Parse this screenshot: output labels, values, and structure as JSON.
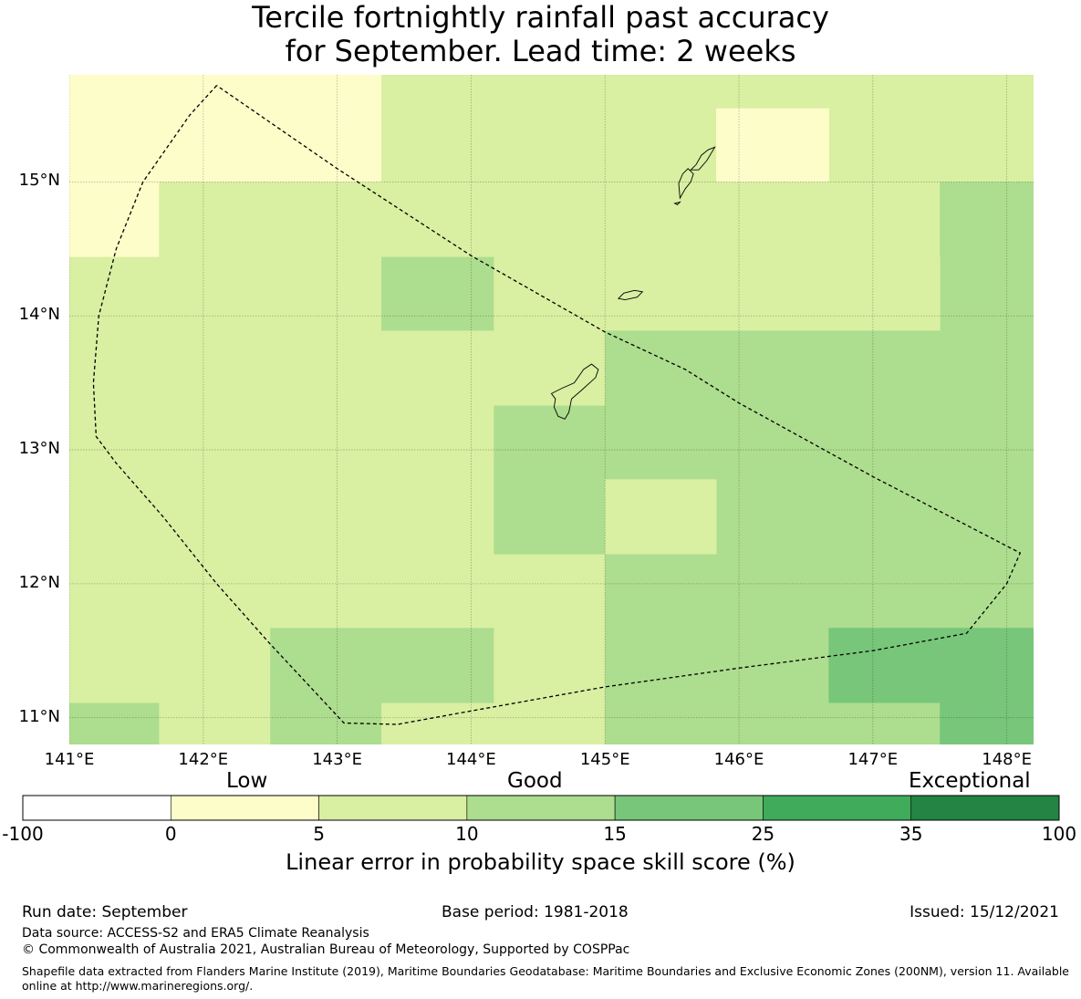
{
  "title": {
    "line1": "Tercile fortnightly rainfall past accuracy",
    "line2": "for September. Lead time: 2 weeks"
  },
  "map": {
    "lon_range": [
      141.0,
      148.2
    ],
    "lat_range": [
      10.8,
      15.8
    ],
    "lat_ticks": [
      {
        "value": 15,
        "label": "15°N"
      },
      {
        "value": 14,
        "label": "14°N"
      },
      {
        "value": 13,
        "label": "13°N"
      },
      {
        "value": 12,
        "label": "12°N"
      },
      {
        "value": 11,
        "label": "11°N"
      }
    ],
    "lon_ticks": [
      {
        "value": 141,
        "label": "141°E"
      },
      {
        "value": 142,
        "label": "142°E"
      },
      {
        "value": 143,
        "label": "143°E"
      },
      {
        "value": 144,
        "label": "144°E"
      },
      {
        "value": 145,
        "label": "145°E"
      },
      {
        "value": 146,
        "label": "146°E"
      },
      {
        "value": 147,
        "label": "147°E"
      },
      {
        "value": 148,
        "label": "148°E"
      }
    ],
    "grid_lines": true,
    "cells": [
      {
        "lon": [
          141.0,
          143.33
        ],
        "lat": [
          15.0,
          15.8
        ],
        "class": 1
      },
      {
        "lon": [
          143.33,
          148.2
        ],
        "lat": [
          15.0,
          15.8
        ],
        "class": 2
      },
      {
        "lon": [
          145.83,
          146.67
        ],
        "lat": [
          15.0,
          15.55
        ],
        "class": 1
      },
      {
        "lon": [
          141.0,
          141.67
        ],
        "lat": [
          14.44,
          15.0
        ],
        "class": 1
      },
      {
        "lon": [
          141.67,
          147.5
        ],
        "lat": [
          14.44,
          15.0
        ],
        "class": 2
      },
      {
        "lon": [
          147.5,
          148.2
        ],
        "lat": [
          13.89,
          15.0
        ],
        "class": 3
      },
      {
        "lon": [
          141.0,
          143.33
        ],
        "lat": [
          13.89,
          14.44
        ],
        "class": 2
      },
      {
        "lon": [
          143.33,
          144.17
        ],
        "lat": [
          13.89,
          14.44
        ],
        "class": 3
      },
      {
        "lon": [
          144.17,
          147.5
        ],
        "lat": [
          13.89,
          14.44
        ],
        "class": 2
      },
      {
        "lon": [
          141.0,
          145.0
        ],
        "lat": [
          13.33,
          13.89
        ],
        "class": 2
      },
      {
        "lon": [
          145.0,
          148.2
        ],
        "lat": [
          12.22,
          13.89
        ],
        "class": 3
      },
      {
        "lon": [
          141.0,
          144.17
        ],
        "lat": [
          12.22,
          13.33
        ],
        "class": 2
      },
      {
        "lon": [
          144.17,
          145.0
        ],
        "lat": [
          12.22,
          13.33
        ],
        "class": 3
      },
      {
        "lon": [
          145.0,
          145.83
        ],
        "lat": [
          12.22,
          12.78
        ],
        "class": 2
      },
      {
        "lon": [
          141.0,
          145.0
        ],
        "lat": [
          11.67,
          12.22
        ],
        "class": 2
      },
      {
        "lon": [
          145.0,
          148.2
        ],
        "lat": [
          11.67,
          12.22
        ],
        "class": 3
      },
      {
        "lon": [
          141.0,
          142.5
        ],
        "lat": [
          11.11,
          11.67
        ],
        "class": 2
      },
      {
        "lon": [
          142.5,
          144.17
        ],
        "lat": [
          11.11,
          11.67
        ],
        "class": 3
      },
      {
        "lon": [
          144.17,
          145.0
        ],
        "lat": [
          11.11,
          11.67
        ],
        "class": 2
      },
      {
        "lon": [
          145.0,
          146.67
        ],
        "lat": [
          11.11,
          11.67
        ],
        "class": 3
      },
      {
        "lon": [
          146.67,
          148.2
        ],
        "lat": [
          11.11,
          11.67
        ],
        "class": 4
      },
      {
        "lon": [
          141.0,
          141.67
        ],
        "lat": [
          10.8,
          11.11
        ],
        "class": 3
      },
      {
        "lon": [
          141.67,
          142.5
        ],
        "lat": [
          10.8,
          11.11
        ],
        "class": 2
      },
      {
        "lon": [
          142.5,
          143.33
        ],
        "lat": [
          10.8,
          11.11
        ],
        "class": 3
      },
      {
        "lon": [
          143.33,
          145.0
        ],
        "lat": [
          10.8,
          11.11
        ],
        "class": 2
      },
      {
        "lon": [
          145.0,
          147.5
        ],
        "lat": [
          10.8,
          11.11
        ],
        "class": 3
      },
      {
        "lon": [
          147.5,
          148.2
        ],
        "lat": [
          10.8,
          11.11
        ],
        "class": 4
      }
    ],
    "eez_boundary": [
      [
        142.1,
        15.72
      ],
      [
        141.9,
        15.5
      ],
      [
        141.55,
        15.0
      ],
      [
        141.35,
        14.5
      ],
      [
        141.22,
        14.0
      ],
      [
        141.18,
        13.5
      ],
      [
        141.2,
        13.1
      ],
      [
        141.35,
        12.9
      ],
      [
        141.7,
        12.5
      ],
      [
        142.1,
        12.0
      ],
      [
        142.5,
        11.55
      ],
      [
        143.05,
        10.96
      ],
      [
        143.45,
        10.95
      ],
      [
        144.0,
        11.05
      ],
      [
        145.0,
        11.23
      ],
      [
        146.0,
        11.37
      ],
      [
        147.0,
        11.5
      ],
      [
        147.7,
        11.63
      ],
      [
        148.0,
        12.0
      ],
      [
        148.1,
        12.23
      ],
      [
        147.0,
        12.8
      ],
      [
        146.0,
        13.35
      ],
      [
        145.6,
        13.6
      ],
      [
        145.0,
        13.88
      ],
      [
        144.0,
        14.45
      ],
      [
        143.0,
        15.1
      ],
      [
        142.1,
        15.72
      ]
    ],
    "islands": [
      [
        [
          144.65,
          13.25
        ],
        [
          144.62,
          13.32
        ],
        [
          144.63,
          13.38
        ],
        [
          144.6,
          13.42
        ],
        [
          144.68,
          13.46
        ],
        [
          144.77,
          13.5
        ],
        [
          144.84,
          13.6
        ],
        [
          144.9,
          13.64
        ],
        [
          144.95,
          13.6
        ],
        [
          144.93,
          13.54
        ],
        [
          144.83,
          13.45
        ],
        [
          144.75,
          13.38
        ],
        [
          144.73,
          13.28
        ],
        [
          144.7,
          13.23
        ],
        [
          144.65,
          13.25
        ]
      ],
      [
        [
          145.1,
          14.13
        ],
        [
          145.14,
          14.17
        ],
        [
          145.22,
          14.19
        ],
        [
          145.28,
          14.18
        ],
        [
          145.24,
          14.14
        ],
        [
          145.15,
          14.12
        ],
        [
          145.1,
          14.13
        ]
      ],
      [
        [
          145.56,
          14.88
        ],
        [
          145.6,
          14.95
        ],
        [
          145.64,
          15.0
        ],
        [
          145.66,
          15.06
        ],
        [
          145.62,
          15.1
        ],
        [
          145.58,
          15.06
        ],
        [
          145.55,
          14.99
        ],
        [
          145.56,
          14.88
        ]
      ],
      [
        [
          145.52,
          14.84
        ],
        [
          145.56,
          14.85
        ],
        [
          145.54,
          14.83
        ],
        [
          145.52,
          14.84
        ]
      ],
      [
        [
          145.64,
          15.09
        ],
        [
          145.7,
          15.09
        ],
        [
          145.76,
          15.16
        ],
        [
          145.82,
          15.26
        ],
        [
          145.77,
          15.24
        ],
        [
          145.72,
          15.2
        ],
        [
          145.68,
          15.13
        ],
        [
          145.64,
          15.09
        ]
      ]
    ]
  },
  "legend": {
    "categories": {
      "low": "Low",
      "good": "Good",
      "exceptional": "Exceptional"
    },
    "bins": [
      {
        "from": -100,
        "to": 0,
        "color": "#ffffff"
      },
      {
        "from": 0,
        "to": 5,
        "color": "#fdfdca"
      },
      {
        "from": 5,
        "to": 10,
        "color": "#d9efa2"
      },
      {
        "from": 10,
        "to": 15,
        "color": "#addd8e"
      },
      {
        "from": 15,
        "to": 25,
        "color": "#78c679"
      },
      {
        "from": 25,
        "to": 35,
        "color": "#3fab5b"
      },
      {
        "from": 35,
        "to": 100,
        "color": "#238443"
      }
    ],
    "tick_labels": [
      "-100",
      "0",
      "5",
      "10",
      "15",
      "25",
      "35",
      "100"
    ],
    "label": "Linear error in probability space skill score (%)"
  },
  "footer": {
    "run_date": "Run date: September",
    "base_period": "Base period: 1981-2018",
    "issued": "Issued: 15/12/2021",
    "data_source": "Data source: ACCESS-S2 and ERA5 Climate Reanalysis",
    "copyright": "© Commonwealth of Australia 2021, Australian Bureau of Meteorology, Supported by COSPPac",
    "shapefile": "Shapefile data extracted from Flanders Marine Institute (2019), Maritime Boundaries Geodatabase: Maritime Boundaries and Exclusive Economic Zones (200NM), version 11. Available online at http://www.marineregions.org/."
  }
}
